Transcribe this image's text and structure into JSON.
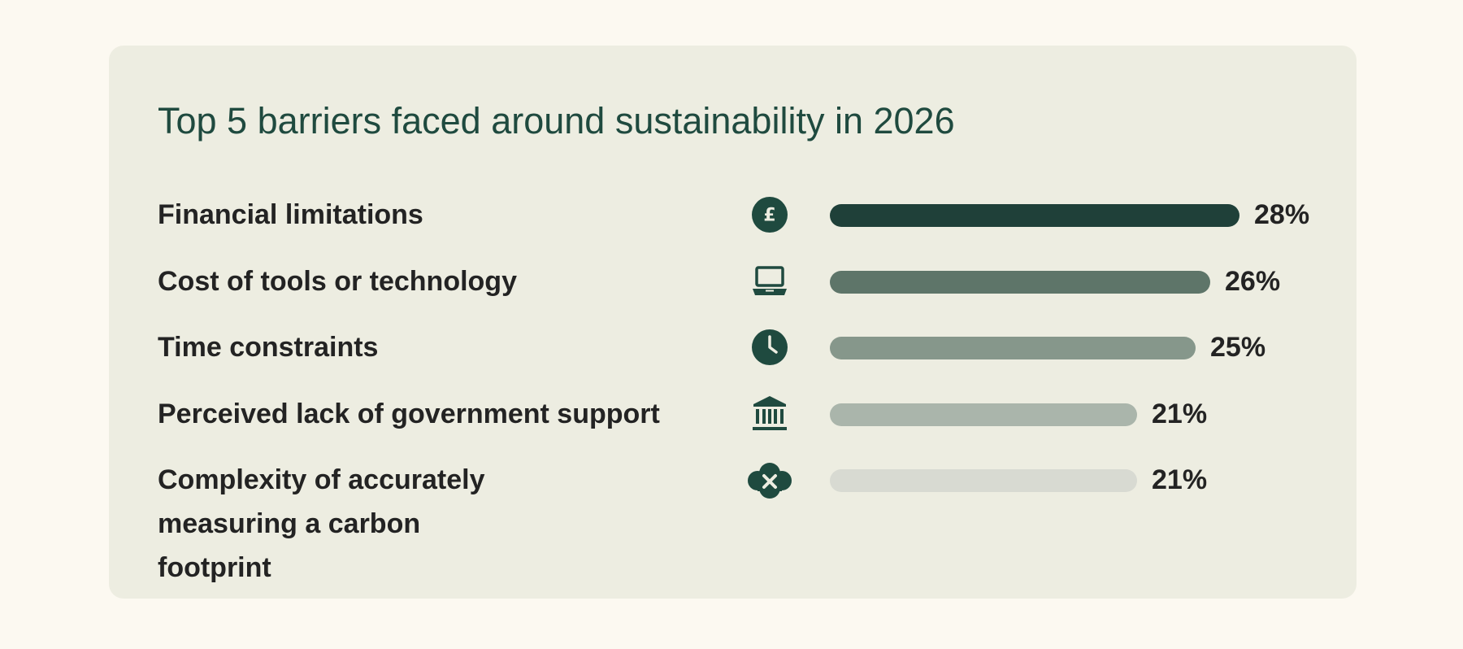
{
  "chart_data": {
    "type": "bar",
    "orientation": "horizontal",
    "title": "Top 5 barriers faced around sustainability in 2026",
    "xlim": [
      0,
      28
    ],
    "grid": false,
    "bars": [
      {
        "label": "Financial limitations",
        "value": 28,
        "value_label": "28%",
        "icon": "pound-coin-icon",
        "color": "#1f4039"
      },
      {
        "label": "Cost of tools or technology",
        "value": 26,
        "value_label": "26%",
        "icon": "laptop-icon",
        "color": "#5e7569"
      },
      {
        "label": "Time constraints",
        "value": 25,
        "value_label": "25%",
        "icon": "clock-icon",
        "color": "#86978b"
      },
      {
        "label": "Perceived lack of government support",
        "value": 21,
        "value_label": "21%",
        "icon": "government-building-icon",
        "color": "#aab5ab"
      },
      {
        "label": "Complexity of accurately measuring a carbon footprint",
        "value": 21,
        "value_label": "21%",
        "icon": "cloud-cross-icon",
        "color": "#d8dad2"
      }
    ]
  },
  "colors": {
    "page_background": "#fcf9f1",
    "card_background": "#edede1",
    "title": "#1f4a3f",
    "icon": "#1f4a3f",
    "text": "#232323"
  }
}
